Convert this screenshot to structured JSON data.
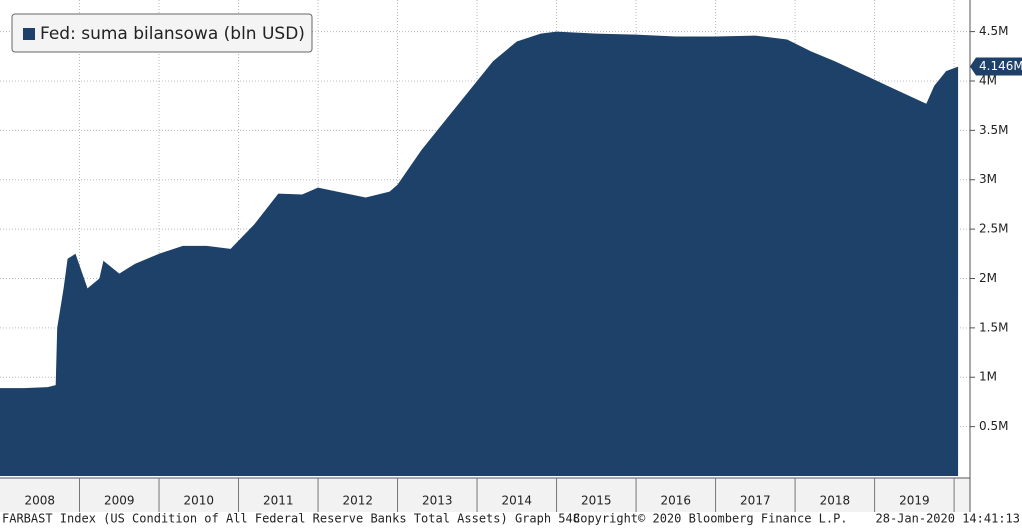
{
  "chart_data": {
    "type": "area",
    "legend": "Fed: suma bilansowa (bln USD)",
    "color": "#1d4168",
    "x": [
      2008.0,
      2008.3,
      2008.6,
      2008.7,
      2008.72,
      2008.8,
      2008.85,
      2008.95,
      2009.1,
      2009.25,
      2009.3,
      2009.5,
      2009.7,
      2010.0,
      2010.3,
      2010.6,
      2010.9,
      2011.2,
      2011.5,
      2011.8,
      2012.0,
      2012.3,
      2012.6,
      2012.9,
      2013.0,
      2013.3,
      2013.6,
      2013.9,
      2014.2,
      2014.5,
      2014.8,
      2015.0,
      2015.5,
      2016.0,
      2016.5,
      2017.0,
      2017.5,
      2017.9,
      2018.2,
      2018.5,
      2018.9,
      2019.3,
      2019.65,
      2019.75,
      2019.9,
      2020.05
    ],
    "values": [
      0.89,
      0.89,
      0.9,
      0.92,
      1.5,
      1.9,
      2.2,
      2.25,
      1.9,
      2.0,
      2.18,
      2.05,
      2.15,
      2.25,
      2.33,
      2.33,
      2.3,
      2.55,
      2.86,
      2.85,
      2.92,
      2.87,
      2.82,
      2.88,
      2.95,
      3.3,
      3.6,
      3.9,
      4.2,
      4.4,
      4.48,
      4.5,
      4.48,
      4.47,
      4.45,
      4.45,
      4.46,
      4.42,
      4.3,
      4.2,
      4.05,
      3.9,
      3.77,
      3.95,
      4.1,
      4.146
    ],
    "last_value_label": "4.146M",
    "xlim": [
      2008,
      2020.2
    ],
    "xticks": [
      2009,
      2010,
      2011,
      2012,
      2013,
      2014,
      2015,
      2016,
      2017,
      2018,
      2019,
      2020
    ],
    "period_labels": [
      "2008",
      "2009",
      "2010",
      "2011",
      "2012",
      "2013",
      "2014",
      "2015",
      "2016",
      "2017",
      "2018",
      "2019"
    ],
    "ylim": [
      0,
      4.82
    ],
    "yticks": [
      {
        "value": 0.5,
        "label": "0.5M"
      },
      {
        "value": 1,
        "label": "1M"
      },
      {
        "value": 1.5,
        "label": "1.5M"
      },
      {
        "value": 2,
        "label": "2M"
      },
      {
        "value": 2.5,
        "label": "2.5M"
      },
      {
        "value": 3,
        "label": "3M"
      },
      {
        "value": 3.5,
        "label": "3.5M"
      },
      {
        "value": 4,
        "label": "4M"
      },
      {
        "value": 4.5,
        "label": "4.5M"
      }
    ],
    "grid": true,
    "source": "FARBAST Index (US Condition of All Federal Reserve Banks Total Assets) Graph 548",
    "copyright": "Copyright© 2020 Bloomberg Finance L.P.",
    "timestamp": "28-Jan-2020 14:41:13"
  }
}
